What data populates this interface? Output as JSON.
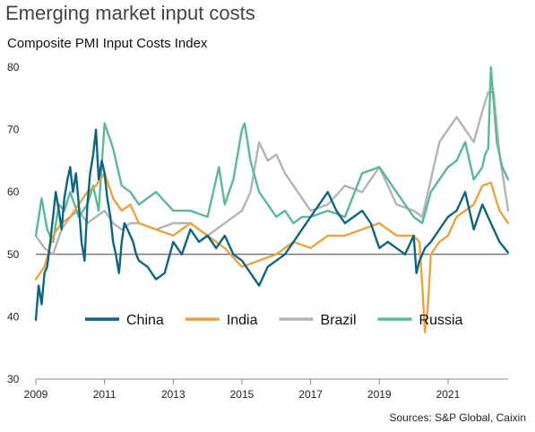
{
  "title": "Emerging market input costs",
  "subtitle": "Composite PMI Input Costs Index",
  "source": "Sources: S&P Global, Caixin",
  "chart_data": {
    "type": "line",
    "ylim": [
      30,
      80
    ],
    "yticks": [
      30,
      40,
      50,
      60,
      70,
      80
    ],
    "xlim": [
      2009.0,
      2022.75
    ],
    "xticks": [
      2009,
      2011,
      2013,
      2015,
      2017,
      2019,
      2021
    ],
    "reference_line": 50,
    "legend_position": "bottom-center",
    "series": [
      {
        "name": "China",
        "color": "#0d6680",
        "x": [
          2009.0,
          2009.08,
          2009.17,
          2009.25,
          2009.33,
          2009.42,
          2009.5,
          2009.58,
          2009.67,
          2009.75,
          2009.83,
          2009.92,
          2010.0,
          2010.08,
          2010.17,
          2010.25,
          2010.33,
          2010.42,
          2010.5,
          2010.58,
          2010.67,
          2010.75,
          2010.83,
          2010.92,
          2011.0,
          2011.08,
          2011.17,
          2011.25,
          2011.33,
          2011.42,
          2011.5,
          2011.58,
          2011.67,
          2011.75,
          2011.83,
          2011.92,
          2012.0,
          2012.25,
          2012.5,
          2012.75,
          2013.0,
          2013.25,
          2013.5,
          2013.75,
          2014.0,
          2014.25,
          2014.5,
          2014.75,
          2015.0,
          2015.25,
          2015.5,
          2015.75,
          2016.0,
          2016.25,
          2016.5,
          2016.75,
          2017.0,
          2017.25,
          2017.5,
          2017.75,
          2018.0,
          2018.25,
          2018.5,
          2018.75,
          2019.0,
          2019.25,
          2019.5,
          2019.75,
          2020.0,
          2020.08,
          2020.17,
          2020.33,
          2020.5,
          2020.75,
          2021.0,
          2021.25,
          2021.5,
          2021.75,
          2022.0,
          2022.25,
          2022.5,
          2022.75
        ],
        "values": [
          39.5,
          45,
          42,
          47,
          48,
          52,
          56,
          60,
          57,
          54,
          59,
          62,
          64,
          60,
          63,
          58,
          52,
          49,
          58,
          63,
          66,
          70,
          62,
          65,
          63,
          59,
          56,
          52,
          50,
          47,
          52,
          55,
          54,
          53,
          52,
          50,
          49,
          48,
          46,
          47,
          52,
          50,
          54,
          52,
          53,
          51,
          53,
          50,
          49,
          47,
          45,
          48,
          49,
          50,
          52,
          54,
          56,
          58,
          60,
          57,
          55,
          56,
          57,
          55,
          51,
          52,
          51,
          50,
          53,
          47,
          49,
          51,
          52,
          54,
          56,
          57,
          60,
          54,
          58,
          55,
          52,
          50.3
        ]
      },
      {
        "name": "India",
        "color": "#eba340",
        "x": [
          2009.0,
          2009.25,
          2009.5,
          2009.75,
          2010.0,
          2010.25,
          2010.5,
          2010.75,
          2011.0,
          2011.25,
          2011.5,
          2011.75,
          2012.0,
          2012.5,
          2013.0,
          2013.5,
          2014.0,
          2014.5,
          2015.0,
          2015.5,
          2016.0,
          2016.5,
          2017.0,
          2017.5,
          2018.0,
          2018.5,
          2019.0,
          2019.5,
          2020.0,
          2020.17,
          2020.25,
          2020.33,
          2020.42,
          2020.5,
          2020.75,
          2021.0,
          2021.25,
          2021.5,
          2021.75,
          2022.0,
          2022.25,
          2022.5,
          2022.75
        ],
        "values": [
          46,
          48,
          53,
          55,
          56,
          58,
          60,
          61,
          63,
          59,
          57,
          58,
          55,
          54,
          53,
          55,
          53,
          51,
          48,
          49,
          50,
          52,
          51,
          53,
          53,
          54,
          55,
          53,
          53,
          52,
          45,
          37.5,
          42,
          50,
          52,
          53,
          56,
          57,
          58,
          61,
          61.5,
          57,
          55
        ]
      },
      {
        "name": "Brazil",
        "color": "#b4b4b4",
        "x": [
          2009.0,
          2009.25,
          2009.5,
          2009.75,
          2010.0,
          2010.25,
          2010.5,
          2010.75,
          2011.0,
          2011.25,
          2011.5,
          2011.75,
          2012.0,
          2012.5,
          2013.0,
          2013.5,
          2014.0,
          2014.5,
          2015.0,
          2015.25,
          2015.5,
          2015.75,
          2016.0,
          2016.25,
          2016.5,
          2016.75,
          2017.0,
          2017.5,
          2018.0,
          2018.5,
          2019.0,
          2019.5,
          2020.0,
          2020.25,
          2020.5,
          2020.75,
          2021.0,
          2021.25,
          2021.5,
          2021.75,
          2022.0,
          2022.17,
          2022.33,
          2022.5,
          2022.67,
          2022.75
        ],
        "values": [
          53,
          51,
          50,
          54,
          56,
          57,
          55,
          56,
          57,
          55,
          54,
          55,
          55,
          54,
          55,
          55,
          53,
          55,
          57,
          60,
          68,
          65,
          66,
          63,
          61,
          59,
          57,
          58,
          61,
          60,
          64,
          58,
          57,
          56,
          62,
          68,
          70,
          72,
          70,
          68,
          73,
          76,
          76,
          66,
          60,
          57
        ]
      },
      {
        "name": "Russia",
        "color": "#5bb997",
        "x": [
          2009.0,
          2009.17,
          2009.33,
          2009.5,
          2009.67,
          2009.83,
          2010.0,
          2010.25,
          2010.5,
          2010.67,
          2010.83,
          2011.0,
          2011.25,
          2011.5,
          2011.75,
          2012.0,
          2012.5,
          2013.0,
          2013.5,
          2014.0,
          2014.33,
          2014.5,
          2014.75,
          2015.0,
          2015.08,
          2015.25,
          2015.5,
          2015.75,
          2016.0,
          2016.25,
          2016.5,
          2016.75,
          2017.0,
          2017.5,
          2018.0,
          2018.5,
          2019.0,
          2019.25,
          2019.5,
          2019.75,
          2020.0,
          2020.25,
          2020.5,
          2020.75,
          2021.0,
          2021.25,
          2021.5,
          2021.75,
          2022.0,
          2022.08,
          2022.17,
          2022.25,
          2022.42,
          2022.58,
          2022.75
        ],
        "values": [
          53,
          59,
          54,
          52,
          58,
          57,
          60,
          56,
          58,
          61,
          57,
          71,
          67,
          61,
          60,
          58,
          60,
          57,
          57,
          56,
          64,
          58,
          62,
          70,
          71,
          65,
          60,
          58,
          56,
          57,
          55,
          56,
          56,
          57,
          56,
          63,
          64,
          62,
          60,
          58,
          56,
          55,
          60,
          62,
          64,
          65,
          68,
          62,
          64,
          66,
          67,
          80,
          68,
          64,
          62
        ]
      }
    ]
  }
}
